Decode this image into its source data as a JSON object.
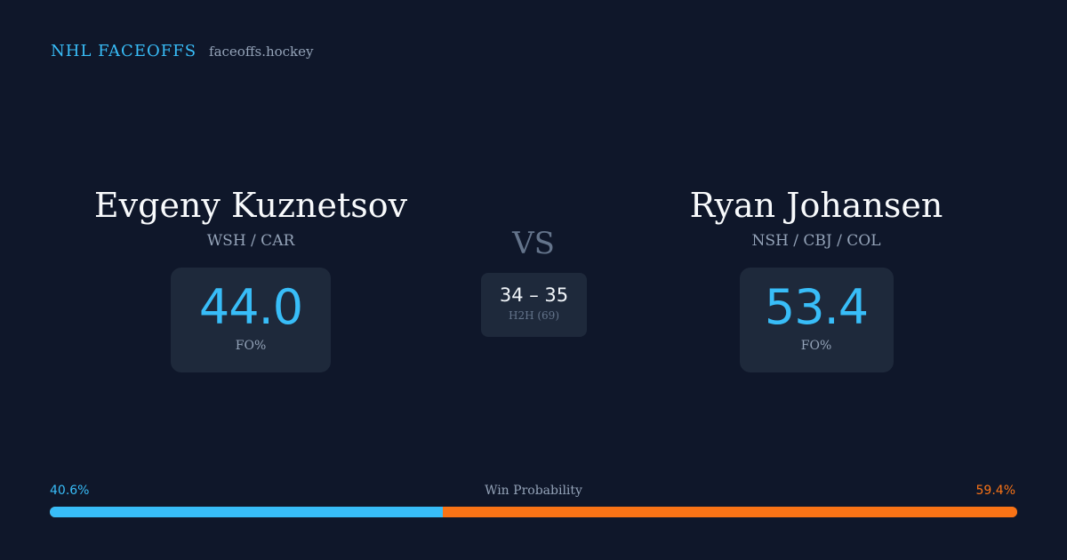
{
  "brand": {
    "name": "NHL FACEOFFS",
    "domain": "faceoffs.hockey"
  },
  "players": {
    "left": {
      "name": "Evgeny Kuznetsov",
      "teams": "WSH / CAR",
      "fo_value": "44.0",
      "fo_label": "FO%"
    },
    "right": {
      "name": "Ryan Johansen",
      "teams": "NSH / CBJ / COL",
      "fo_value": "53.4",
      "fo_label": "FO%"
    }
  },
  "versus": {
    "label": "VS",
    "h2h_score": "34 – 35",
    "h2h_label": "H2H (69)"
  },
  "win_probability": {
    "title": "Win Probability",
    "left_label": "40.6%",
    "right_label": "59.4%",
    "left_percent": 40.6,
    "right_percent": 59.4
  },
  "colors": {
    "background": "#0f172a",
    "card": "#1e293b",
    "accent_left": "#38bdf8",
    "accent_right": "#f97316",
    "muted_text": "#94a3b8"
  }
}
